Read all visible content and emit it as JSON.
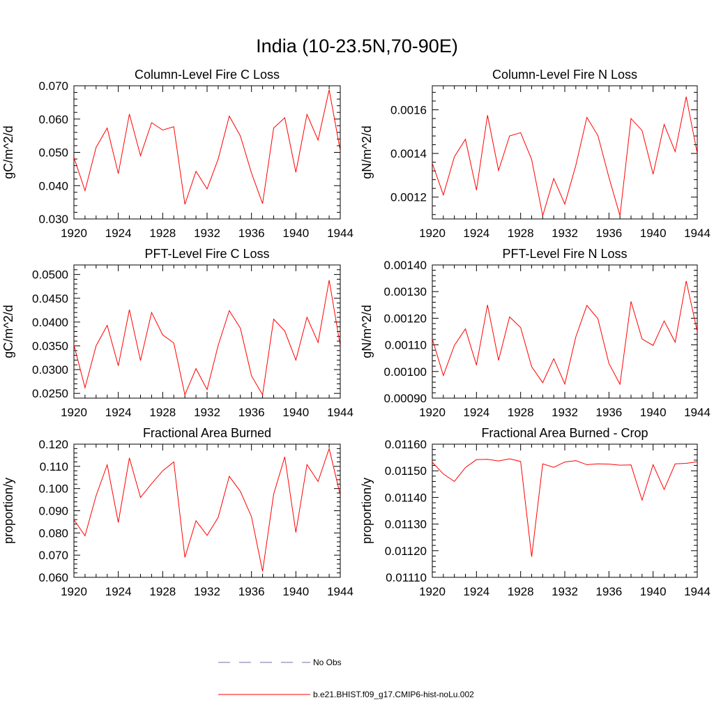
{
  "figure": {
    "title": "India (10-23.5N,70-90E)"
  },
  "legend": [
    {
      "label": "No Obs",
      "color": "#6f6fa8",
      "dash": "dashed"
    },
    {
      "label": "b.e21.BHIST.f09_g17.CMIP6-hist-noLu.002",
      "color": "#ff0000",
      "dash": "solid"
    }
  ],
  "chart_data": [
    {
      "type": "line",
      "title": "Column-Level Fire C Loss",
      "ylabel": "gC/m^2/d",
      "xlim": [
        1920,
        1944
      ],
      "ylim": [
        0.03,
        0.07
      ],
      "xticks": [
        1920,
        1924,
        1928,
        1932,
        1936,
        1940,
        1944
      ],
      "yticks": [
        "0.030",
        "0.040",
        "0.050",
        "0.060",
        "0.070"
      ],
      "ytick_values": [
        0.03,
        0.04,
        0.05,
        0.06,
        0.07
      ],
      "x": [
        1920,
        1921,
        1922,
        1923,
        1924,
        1925,
        1926,
        1927,
        1928,
        1929,
        1930,
        1931,
        1932,
        1933,
        1934,
        1935,
        1936,
        1937,
        1938,
        1939,
        1940,
        1941,
        1942,
        1943,
        1944
      ],
      "series": [
        {
          "name": "b.e21.BHIST.f09_g17.CMIP6-hist-noLu.002",
          "color": "#ff0000",
          "values": [
            0.0485,
            0.0385,
            0.0515,
            0.0573,
            0.0436,
            0.0615,
            0.049,
            0.0589,
            0.0567,
            0.0577,
            0.0344,
            0.0443,
            0.039,
            0.048,
            0.0609,
            0.0549,
            0.0438,
            0.0346,
            0.0573,
            0.0604,
            0.044,
            0.0614,
            0.0537,
            0.0688,
            0.0505
          ]
        }
      ]
    },
    {
      "type": "line",
      "title": "Column-Level Fire N Loss",
      "ylabel": "gN/m^2/d",
      "xlim": [
        1920,
        1944
      ],
      "ylim": [
        0.0011,
        0.00171
      ],
      "xticks": [
        1920,
        1924,
        1928,
        1932,
        1936,
        1940,
        1944
      ],
      "yticks": [
        "0.0012",
        "0.0014",
        "0.0016"
      ],
      "ytick_values": [
        0.0012,
        0.0014,
        0.0016
      ],
      "x": [
        1920,
        1921,
        1922,
        1923,
        1924,
        1925,
        1926,
        1927,
        1928,
        1929,
        1930,
        1931,
        1932,
        1933,
        1934,
        1935,
        1936,
        1937,
        1938,
        1939,
        1940,
        1941,
        1942,
        1943,
        1944
      ],
      "series": [
        {
          "name": "b.e21.BHIST.f09_g17.CMIP6-hist-noLu.002",
          "color": "#ff0000",
          "values": [
            0.001355,
            0.00121,
            0.001385,
            0.001465,
            0.001232,
            0.001575,
            0.001322,
            0.00148,
            0.001495,
            0.001372,
            0.001115,
            0.001285,
            0.001168,
            0.001345,
            0.001565,
            0.001482,
            0.00129,
            0.001115,
            0.00156,
            0.001505,
            0.001305,
            0.001533,
            0.001408,
            0.00166,
            0.0014
          ]
        }
      ]
    },
    {
      "type": "line",
      "title": "PFT-Level Fire C Loss",
      "ylabel": "gC/m^2/d",
      "xlim": [
        1920,
        1944
      ],
      "ylim": [
        0.024,
        0.052
      ],
      "xticks": [
        1920,
        1924,
        1928,
        1932,
        1936,
        1940,
        1944
      ],
      "yticks": [
        "0.0250",
        "0.0300",
        "0.0350",
        "0.0400",
        "0.0450",
        "0.0500"
      ],
      "ytick_values": [
        0.025,
        0.03,
        0.035,
        0.04,
        0.045,
        0.05
      ],
      "x": [
        1920,
        1921,
        1922,
        1923,
        1924,
        1925,
        1926,
        1927,
        1928,
        1929,
        1930,
        1931,
        1932,
        1933,
        1934,
        1935,
        1936,
        1937,
        1938,
        1939,
        1940,
        1941,
        1942,
        1943,
        1944
      ],
      "series": [
        {
          "name": "b.e21.BHIST.f09_g17.CMIP6-hist-noLu.002",
          "color": "#ff0000",
          "values": [
            0.0352,
            0.0262,
            0.035,
            0.0393,
            0.0308,
            0.0426,
            0.0319,
            0.042,
            0.0373,
            0.0356,
            0.0247,
            0.0302,
            0.0258,
            0.0351,
            0.0424,
            0.0387,
            0.0287,
            0.0247,
            0.0406,
            0.0381,
            0.032,
            0.041,
            0.0357,
            0.0488,
            0.035
          ]
        }
      ]
    },
    {
      "type": "line",
      "title": "PFT-Level Fire N Loss",
      "ylabel": "gN/m^2/d",
      "xlim": [
        1920,
        1944
      ],
      "ylim": [
        0.0009,
        0.0014
      ],
      "xticks": [
        1920,
        1924,
        1928,
        1932,
        1936,
        1940,
        1944
      ],
      "yticks": [
        "0.00090",
        "0.00100",
        "0.00110",
        "0.00120",
        "0.00130",
        "0.00140"
      ],
      "ytick_values": [
        0.0009,
        0.001,
        0.0011,
        0.0012,
        0.0013,
        0.0014
      ],
      "x": [
        1920,
        1921,
        1922,
        1923,
        1924,
        1925,
        1926,
        1927,
        1928,
        1929,
        1930,
        1931,
        1932,
        1933,
        1934,
        1935,
        1936,
        1937,
        1938,
        1939,
        1940,
        1941,
        1942,
        1943,
        1944
      ],
      "series": [
        {
          "name": "b.e21.BHIST.f09_g17.CMIP6-hist-noLu.002",
          "color": "#ff0000",
          "values": [
            0.001122,
            0.000985,
            0.001098,
            0.00116,
            0.001024,
            0.00125,
            0.001042,
            0.001205,
            0.001165,
            0.001018,
            0.000958,
            0.001048,
            0.000953,
            0.00113,
            0.001248,
            0.001198,
            0.00103,
            0.000952,
            0.001263,
            0.001122,
            0.001098,
            0.00119,
            0.00111,
            0.00134,
            0.00115
          ]
        }
      ]
    },
    {
      "type": "line",
      "title": "Fractional Area Burned",
      "ylabel": "proportion/y",
      "xlim": [
        1920,
        1944
      ],
      "ylim": [
        0.06,
        0.12
      ],
      "xticks": [
        1920,
        1924,
        1928,
        1932,
        1936,
        1940,
        1944
      ],
      "yticks": [
        "0.060",
        "0.070",
        "0.080",
        "0.090",
        "0.100",
        "0.110",
        "0.120"
      ],
      "ytick_values": [
        0.06,
        0.07,
        0.08,
        0.09,
        0.1,
        0.11,
        0.12
      ],
      "x": [
        1920,
        1921,
        1922,
        1923,
        1924,
        1925,
        1926,
        1927,
        1928,
        1929,
        1930,
        1931,
        1932,
        1933,
        1934,
        1935,
        1936,
        1937,
        1938,
        1939,
        1940,
        1941,
        1942,
        1943,
        1944
      ],
      "series": [
        {
          "name": "b.e21.BHIST.f09_g17.CMIP6-hist-noLu.002",
          "color": "#ff0000",
          "values": [
            0.086,
            0.0787,
            0.0968,
            0.1107,
            0.0847,
            0.1138,
            0.096,
            0.1022,
            0.108,
            0.112,
            0.069,
            0.0855,
            0.0789,
            0.087,
            0.1055,
            0.0987,
            0.0873,
            0.0627,
            0.0975,
            0.1143,
            0.0802,
            0.1108,
            0.1032,
            0.118,
            0.097
          ]
        }
      ]
    },
    {
      "type": "line",
      "title": "Fractional Area Burned - Crop",
      "ylabel": "proportion/y",
      "xlim": [
        1920,
        1944
      ],
      "ylim": [
        0.0111,
        0.0116
      ],
      "xticks": [
        1920,
        1924,
        1928,
        1932,
        1936,
        1940,
        1944
      ],
      "yticks": [
        "0.01110",
        "0.01120",
        "0.01130",
        "0.01140",
        "0.01150",
        "0.01160"
      ],
      "ytick_values": [
        0.0111,
        0.0112,
        0.0113,
        0.0114,
        0.0115,
        0.0116
      ],
      "x": [
        1920,
        1921,
        1922,
        1923,
        1924,
        1925,
        1926,
        1927,
        1928,
        1929,
        1930,
        1931,
        1932,
        1933,
        1934,
        1935,
        1936,
        1937,
        1938,
        1939,
        1940,
        1941,
        1942,
        1943,
        1944
      ],
      "series": [
        {
          "name": "b.e21.BHIST.f09_g17.CMIP6-hist-noLu.002",
          "color": "#ff0000",
          "values": [
            0.011532,
            0.011488,
            0.01146,
            0.011512,
            0.011542,
            0.011543,
            0.011537,
            0.011545,
            0.011535,
            0.011177,
            0.011526,
            0.011513,
            0.011533,
            0.011538,
            0.011523,
            0.011526,
            0.011525,
            0.011521,
            0.011522,
            0.01139,
            0.011523,
            0.01143,
            0.011526,
            0.011528,
            0.011534
          ]
        }
      ]
    }
  ]
}
